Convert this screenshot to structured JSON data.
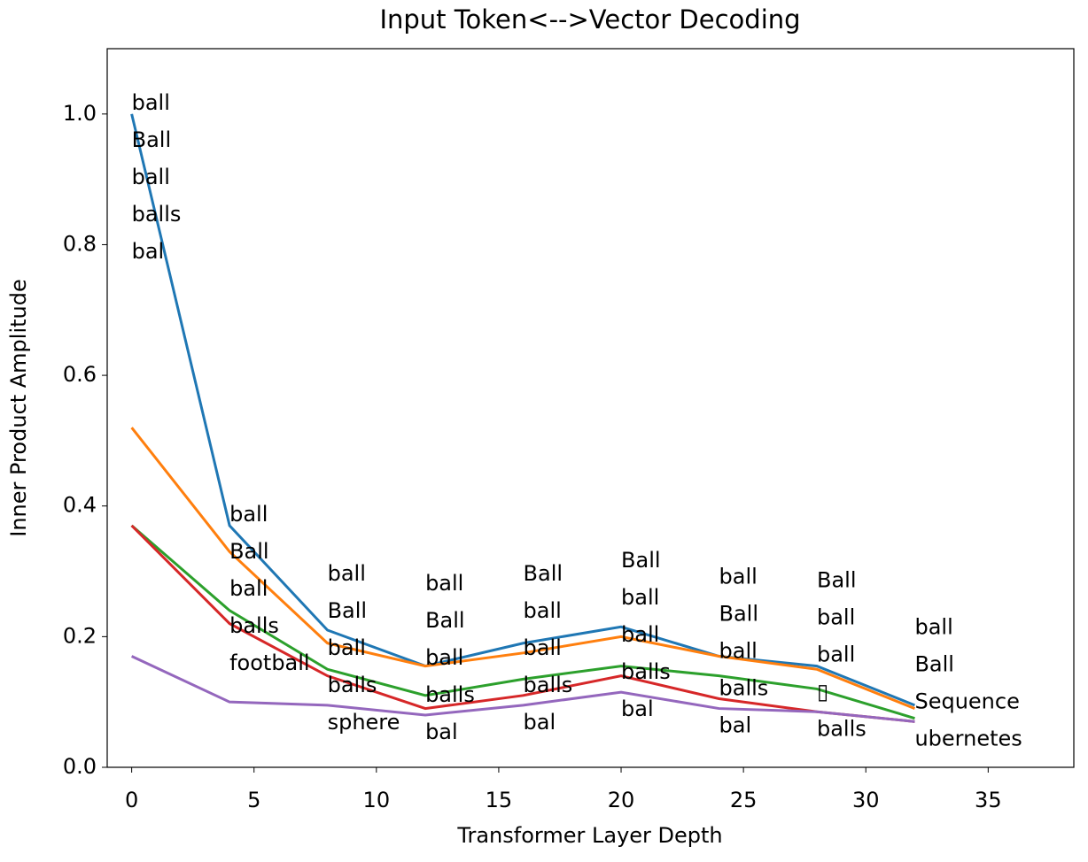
{
  "chart_data": {
    "type": "line",
    "title": "Input Token<-->Vector Decoding",
    "x_label": "Transformer Layer Depth",
    "y_label": "Inner Product Amplitude",
    "x": [
      0,
      4,
      8,
      12,
      16,
      20,
      24,
      28,
      32
    ],
    "series": [
      {
        "color": "#1f77b4",
        "values": [
          1.0,
          0.37,
          0.21,
          0.155,
          0.19,
          0.215,
          0.17,
          0.155,
          0.095
        ],
        "labels": [
          "ball",
          "ball",
          "ball",
          "ball",
          "Ball",
          "Ball",
          "ball",
          "Ball",
          "ball"
        ]
      },
      {
        "color": "#ff7f0e",
        "values": [
          0.52,
          0.33,
          0.19,
          0.155,
          0.175,
          0.2,
          0.17,
          0.15,
          0.09
        ],
        "labels": [
          "Ball",
          "Ball",
          "Ball",
          "Ball",
          "ball",
          "ball",
          "Ball",
          "ball",
          "Ball"
        ]
      },
      {
        "color": "#2ca02c",
        "values": [
          0.37,
          0.24,
          0.15,
          0.11,
          0.135,
          0.155,
          0.14,
          0.12,
          0.075
        ],
        "labels": [
          "ball",
          "ball",
          "ball",
          "ball",
          "ball",
          "ball",
          "ball",
          "ball",
          "Sequence"
        ]
      },
      {
        "color": "#d62728",
        "values": [
          0.37,
          0.22,
          0.14,
          0.09,
          0.11,
          0.14,
          0.105,
          0.085,
          0.07
        ],
        "labels": [
          "balls",
          "balls",
          "balls",
          "balls",
          "balls",
          "balls",
          "balls",
          "▯",
          "ubernetes"
        ]
      },
      {
        "color": "#9467bd",
        "values": [
          0.17,
          0.1,
          0.095,
          0.08,
          0.095,
          0.115,
          0.09,
          0.085,
          0.07
        ],
        "labels": [
          "bal",
          "football",
          "sphere",
          "bal",
          "bal",
          "bal",
          "bal",
          "balls",
          null
        ]
      }
    ],
    "xlim": [
      -1,
      38.5
    ],
    "ylim": [
      0,
      1.1
    ],
    "xticks": [
      0,
      5,
      10,
      15,
      20,
      25,
      30,
      35
    ],
    "yticks": [
      {
        "value": 0,
        "label": "0.0"
      },
      0.2,
      0.4,
      0.6,
      0.8,
      {
        "value": 1,
        "label": "1.0"
      }
    ]
  }
}
